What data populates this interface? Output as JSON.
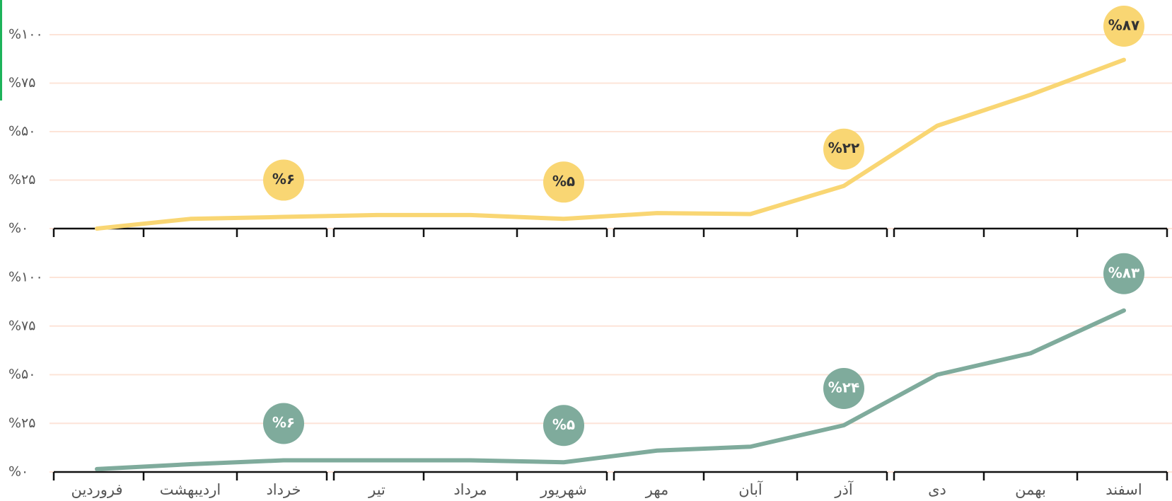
{
  "chart_data": [
    {
      "type": "line",
      "color": "#f9d673",
      "values": [
        0,
        5,
        6,
        7,
        7,
        5,
        8,
        7.5,
        22,
        53,
        69,
        87
      ],
      "value_labels": [
        null,
        null,
        "%۶",
        null,
        null,
        "%۵",
        null,
        null,
        "%۲۲",
        null,
        null,
        "%۸۷"
      ],
      "ylim": [
        0,
        100
      ],
      "yticks": [
        {
          "value": 0,
          "label": "%۰"
        },
        {
          "value": 25,
          "label": "%۲۵"
        },
        {
          "value": 50,
          "label": "%۵۰"
        },
        {
          "value": 75,
          "label": "%۷۵"
        },
        {
          "value": 100,
          "label": "%۱۰۰"
        }
      ],
      "grid": true
    },
    {
      "type": "line",
      "color": "#7fab9c",
      "categories": [
        "فروردین",
        "اردیبهشت",
        "خرداد",
        "تیر",
        "مرداد",
        "شهریور",
        "مهر",
        "آبان",
        "آذر",
        "دی",
        "بهمن",
        "اسفند"
      ],
      "values": [
        1.5,
        4,
        6,
        6,
        6,
        5,
        11,
        13,
        24,
        50,
        61,
        83
      ],
      "value_labels": [
        null,
        null,
        "%۶",
        null,
        null,
        "%۵",
        null,
        null,
        "%۲۴",
        null,
        null,
        "%۸۳"
      ],
      "ylim": [
        0,
        100
      ],
      "yticks": [
        {
          "value": 0,
          "label": "%۰"
        },
        {
          "value": 25,
          "label": "%۲۵"
        },
        {
          "value": 50,
          "label": "%۵۰"
        },
        {
          "value": 75,
          "label": "%۷۵"
        },
        {
          "value": 100,
          "label": "%۱۰۰"
        }
      ],
      "grid": true
    }
  ]
}
